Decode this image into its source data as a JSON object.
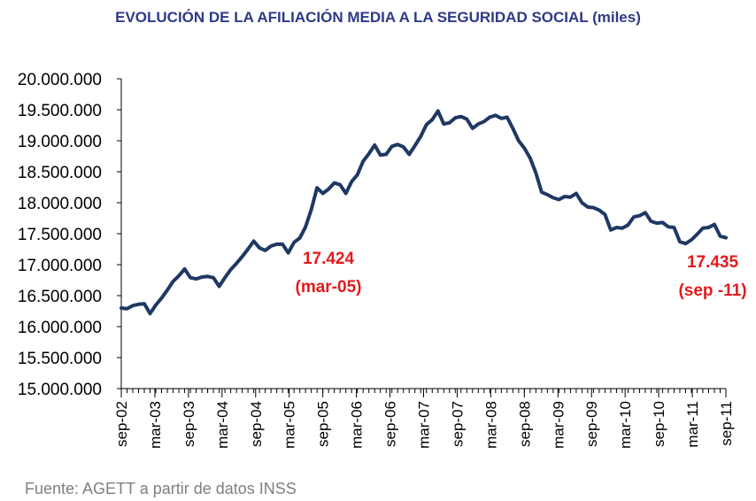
{
  "title": "EVOLUCIÓN DE LA AFILIACIÓN MEDIA A LA SEGURIDAD SOCIAL (miles)",
  "source": "Fuente: AGETT a partir de datos INSS",
  "colors": {
    "line": "#1F3864",
    "title": "#2E3A87",
    "annotation": "#E31A1C",
    "axis": "#000000",
    "source_text": "#7F7F7F"
  },
  "chart_data": {
    "type": "line",
    "title": "EVOLUCIÓN DE LA AFILIACIÓN MEDIA A LA SEGURIDAD SOCIAL (miles)",
    "xlabel": "",
    "ylabel": "",
    "ylim": [
      15000000,
      20000000
    ],
    "grid": false,
    "legend": "none",
    "y_ticks": [
      "15.000.000",
      "15.500.000",
      "16.000.000",
      "16.500.000",
      "17.000.000",
      "17.500.000",
      "18.000.000",
      "18.500.000",
      "19.000.000",
      "19.500.000",
      "20.000.000"
    ],
    "x_ticks": [
      "sep-02",
      "mar-03",
      "sep-03",
      "mar-04",
      "sep-04",
      "mar-05",
      "sep-05",
      "mar-06",
      "sep-06",
      "mar-07",
      "sep-07",
      "mar-08",
      "sep-08",
      "mar-09",
      "sep-09",
      "mar-10",
      "sep-10",
      "mar-11",
      "sep-11"
    ],
    "x_start": "sep-02",
    "x_end": "sep-11",
    "series": [
      {
        "values": [
          16300000,
          16290000,
          16340000,
          16360000,
          16370000,
          16210000,
          16350000,
          16460000,
          16590000,
          16730000,
          16820000,
          16930000,
          16790000,
          16770000,
          16800000,
          16810000,
          16790000,
          16650000,
          16790000,
          16920000,
          17020000,
          17130000,
          17250000,
          17380000,
          17270000,
          17230000,
          17300000,
          17330000,
          17330000,
          17190000,
          17360000,
          17430000,
          17610000,
          17890000,
          18240000,
          18150000,
          18220000,
          18320000,
          18290000,
          18150000,
          18340000,
          18450000,
          18670000,
          18790000,
          18930000,
          18770000,
          18780000,
          18910000,
          18940000,
          18900000,
          18780000,
          18920000,
          19070000,
          19260000,
          19340000,
          19480000,
          19270000,
          19290000,
          19370000,
          19390000,
          19350000,
          19200000,
          19270000,
          19310000,
          19380000,
          19410000,
          19360000,
          19380000,
          19200000,
          19000000,
          18880000,
          18720000,
          18480000,
          18170000,
          18130000,
          18080000,
          18050000,
          18100000,
          18090000,
          18150000,
          18000000,
          17930000,
          17920000,
          17880000,
          17810000,
          17560000,
          17600000,
          17590000,
          17640000,
          17770000,
          17790000,
          17840000,
          17700000,
          17670000,
          17680000,
          17610000,
          17600000,
          17370000,
          17340000,
          17400000,
          17490000,
          17590000,
          17600000,
          17650000,
          17460000,
          17435000
        ]
      }
    ],
    "annotations": [
      {
        "label": "17.424",
        "label2": "(mar-05)",
        "x": "mar-05",
        "value": 17424000
      },
      {
        "label": "17.435",
        "label2": "(sep -11)",
        "x": "sep-11",
        "value": 17435000
      }
    ]
  }
}
